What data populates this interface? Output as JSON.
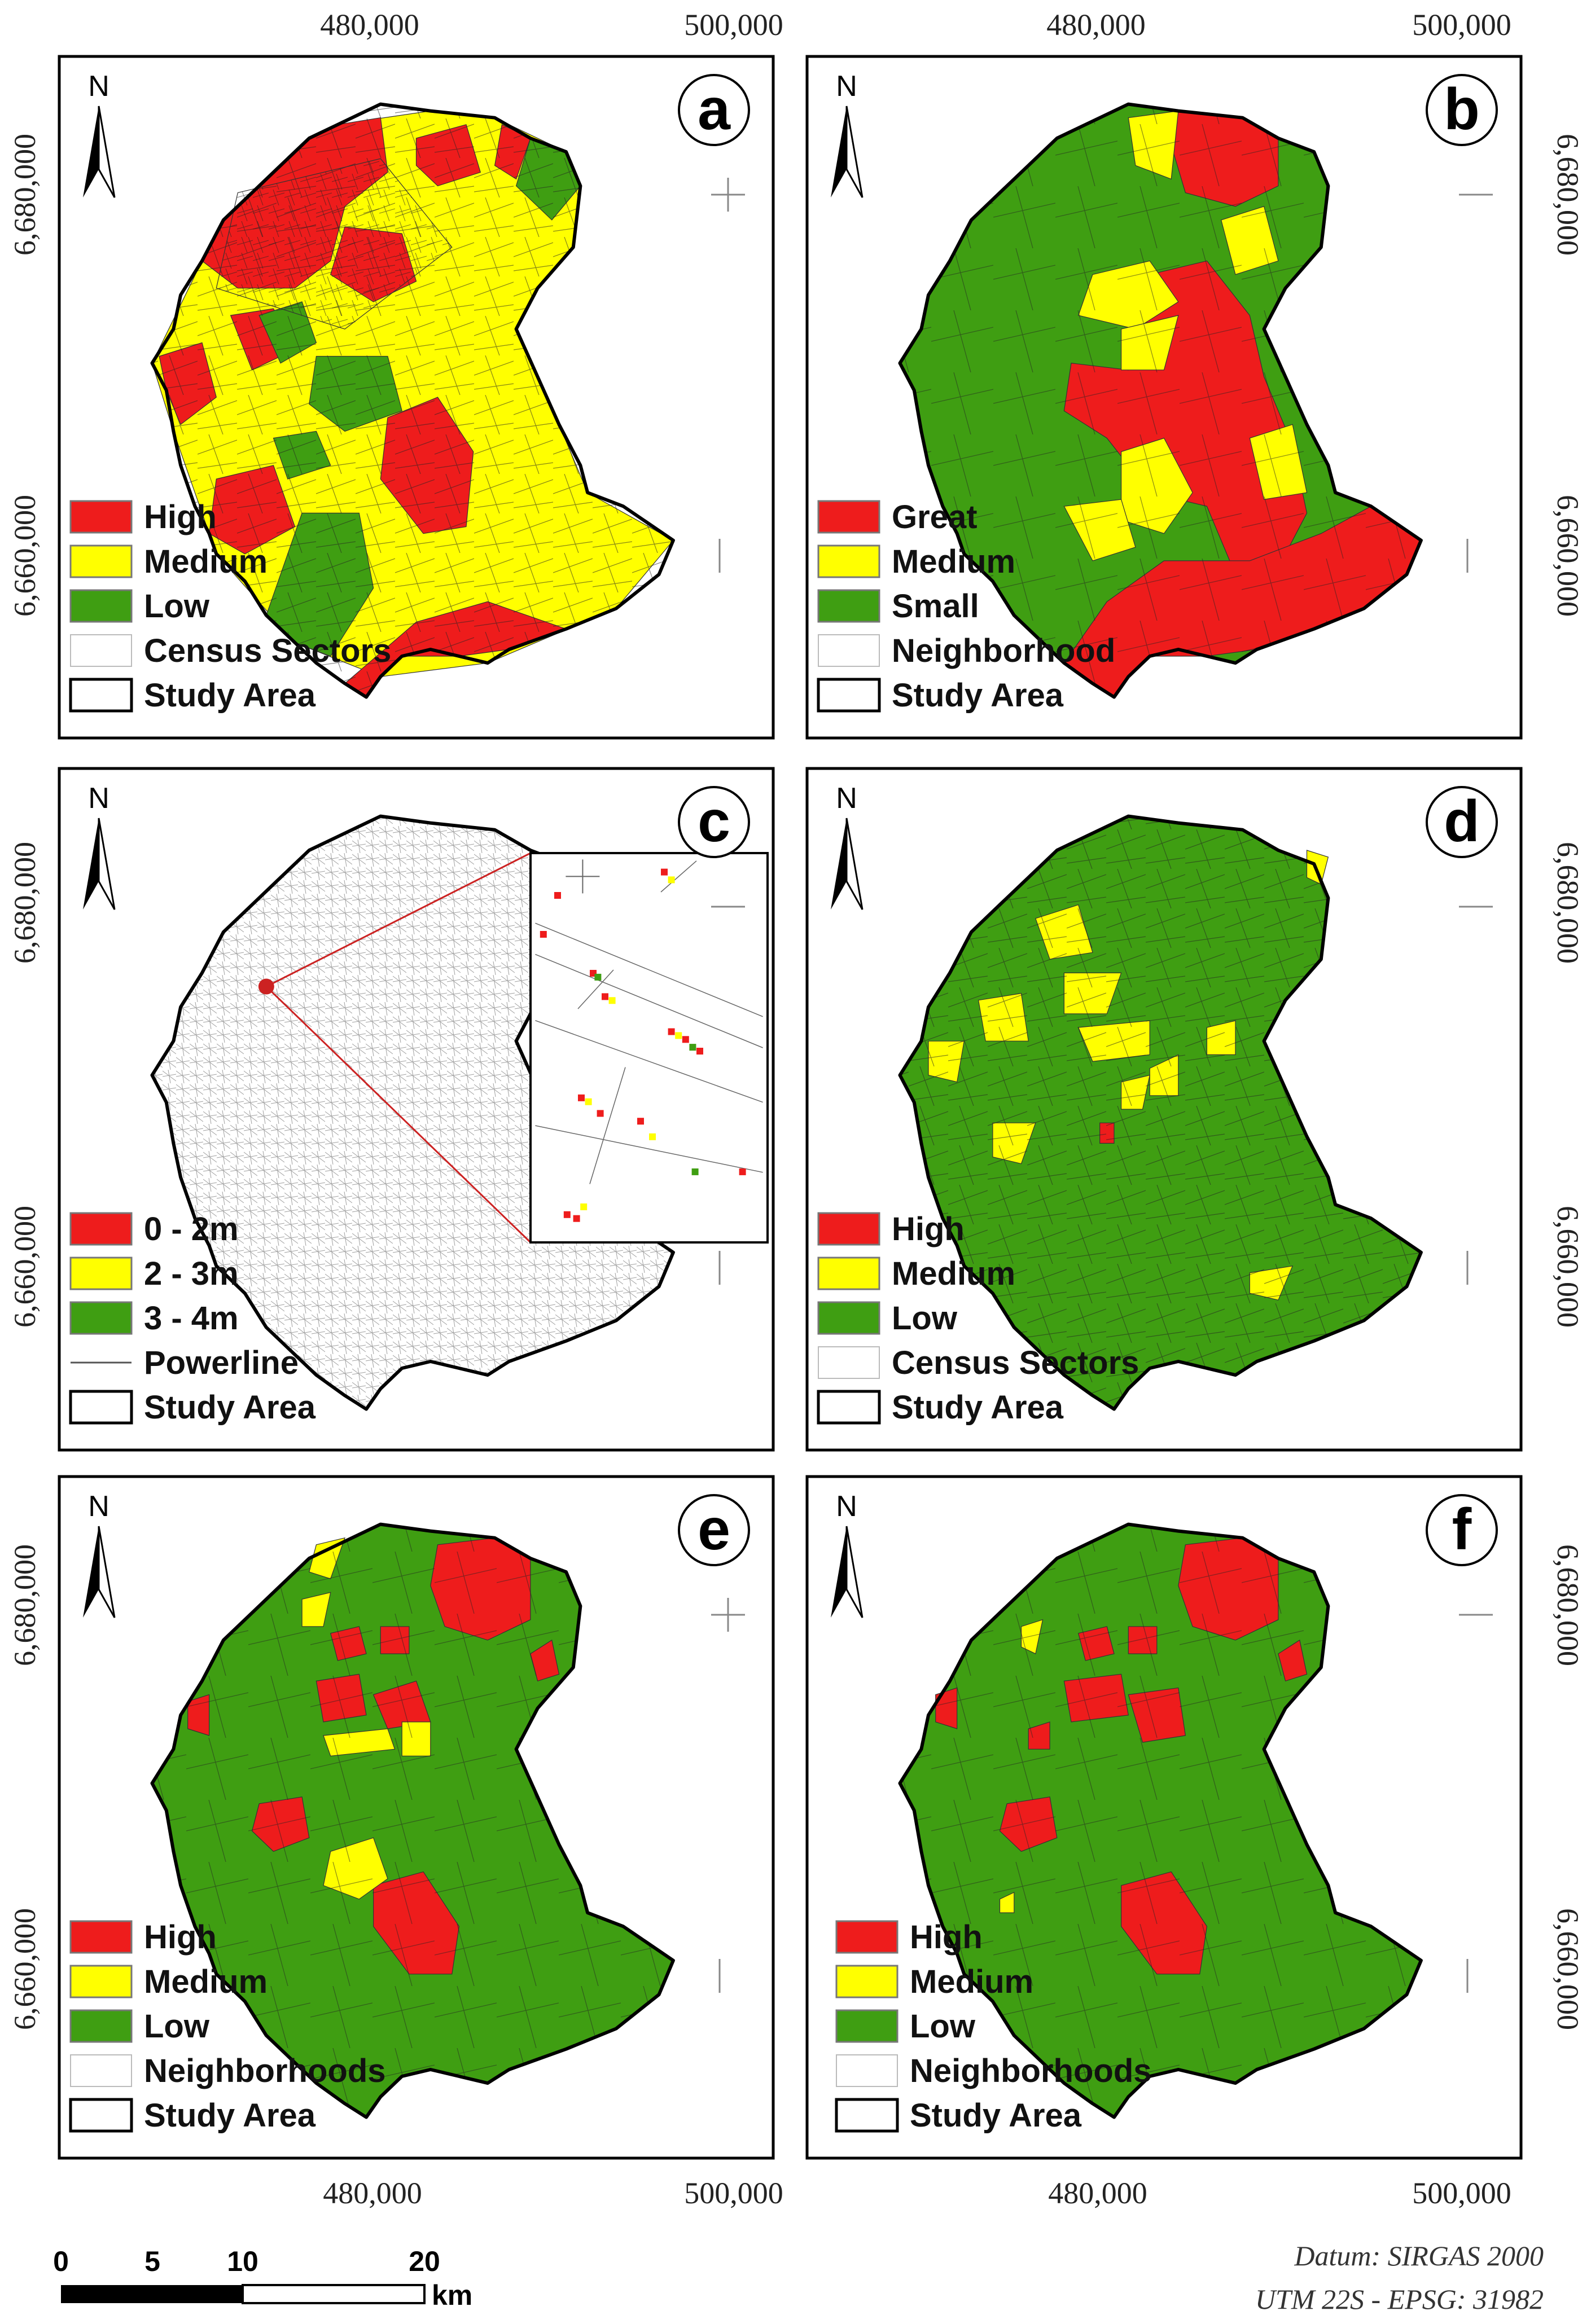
{
  "colors": {
    "high": "#ee1c1c",
    "medium": "#ffff00",
    "low": "#3f9e12",
    "powerline": "#555555",
    "study_area_outline": "#000000",
    "inset_line": "#cc2222"
  },
  "grid_labels": {
    "x_top": [
      "480,000",
      "500,000"
    ],
    "x_bottom": [
      "480,000",
      "500,000"
    ],
    "y": [
      "6,680,000",
      "6,660,000"
    ]
  },
  "panels": [
    {
      "id": "a",
      "letter": "a",
      "fill_scheme": "census-mixed",
      "legend": [
        {
          "label": "High",
          "swatch": "high"
        },
        {
          "label": "Medium",
          "swatch": "medium"
        },
        {
          "label": "Low",
          "swatch": "low"
        },
        {
          "label": "Census Sectors",
          "swatch": "thin"
        },
        {
          "label": "Study Area",
          "swatch": "outline"
        }
      ]
    },
    {
      "id": "b",
      "letter": "b",
      "fill_scheme": "neighborhood-size",
      "legend": [
        {
          "label": "Great",
          "swatch": "high"
        },
        {
          "label": "Medium",
          "swatch": "medium"
        },
        {
          "label": "Small",
          "swatch": "low"
        },
        {
          "label": "Neighborhood",
          "swatch": "thin"
        },
        {
          "label": "Study Area",
          "swatch": "outline"
        }
      ]
    },
    {
      "id": "c",
      "letter": "c",
      "fill_scheme": "powerline",
      "legend": [
        {
          "label": "0 - 2m",
          "swatch": "high"
        },
        {
          "label": "2 - 3m",
          "swatch": "medium"
        },
        {
          "label": "3 - 4m",
          "swatch": "low"
        },
        {
          "label": "Powerline",
          "swatch": "line"
        },
        {
          "label": "Study Area",
          "swatch": "outline"
        }
      ]
    },
    {
      "id": "d",
      "letter": "d",
      "fill_scheme": "census-low",
      "legend": [
        {
          "label": "High",
          "swatch": "high"
        },
        {
          "label": "Medium",
          "swatch": "medium"
        },
        {
          "label": "Low",
          "swatch": "low"
        },
        {
          "label": "Census Sectors",
          "swatch": "thin"
        },
        {
          "label": "Study Area",
          "swatch": "outline"
        }
      ]
    },
    {
      "id": "e",
      "letter": "e",
      "fill_scheme": "neighborhood-e",
      "legend": [
        {
          "label": "High",
          "swatch": "high"
        },
        {
          "label": "Medium",
          "swatch": "medium"
        },
        {
          "label": "Low",
          "swatch": "low"
        },
        {
          "label": "Neighborhoods",
          "swatch": "thin"
        },
        {
          "label": "Study Area",
          "swatch": "outline"
        }
      ]
    },
    {
      "id": "f",
      "letter": "f",
      "fill_scheme": "neighborhood-f",
      "legend": [
        {
          "label": "High",
          "swatch": "high"
        },
        {
          "label": "Medium",
          "swatch": "medium"
        },
        {
          "label": "Low",
          "swatch": "low"
        },
        {
          "label": "Neighborhoods",
          "swatch": "thin"
        },
        {
          "label": "Study Area",
          "swatch": "outline"
        }
      ]
    }
  ],
  "north_arrow": {
    "label": "N",
    "icon": "north-arrow-icon"
  },
  "scale_bar": {
    "ticks": [
      "0",
      "5",
      "10",
      "20"
    ],
    "unit": "km"
  },
  "datum": {
    "line1": "Datum: SIRGAS 2000",
    "line2": "UTM 22S - EPSG: 31982"
  }
}
